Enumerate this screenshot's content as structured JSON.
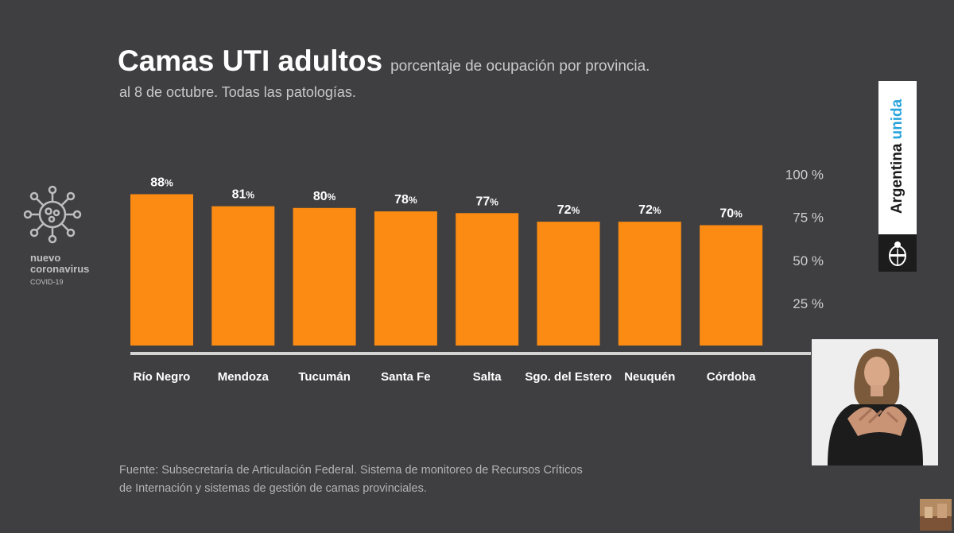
{
  "header": {
    "title": "Camas UTI adultos",
    "title_suffix": "porcentaje de ocupación por provincia.",
    "subtitle": "al 8 de octubre. Todas las patologías."
  },
  "badge": {
    "line1": "nuevo",
    "line2": "coronavirus",
    "line3": "COVID-19"
  },
  "brand": {
    "word1": "Argentina",
    "word2": "unida"
  },
  "source": {
    "line1": "Fuente: Subsecretaría de Articulación Federal. Sistema de monitoreo de Recursos Críticos",
    "line2": "de Internación  y sistemas de gestión de camas provinciales."
  },
  "colors": {
    "bar": "#fb8b12",
    "axis": "#d3d3d3",
    "text": "#ffffff",
    "accent": "#29a3db"
  },
  "chart_data": {
    "type": "bar",
    "title": "Camas UTI adultos",
    "subtitle": "porcentaje de ocupación por provincia. al 8 de octubre. Todas las patologías.",
    "categories": [
      "Río Negro",
      "Mendoza",
      "Tucumán",
      "Santa Fe",
      "Salta",
      "Sgo. del Estero",
      "Neuquén",
      "Córdoba"
    ],
    "values": [
      88,
      81,
      80,
      78,
      77,
      72,
      72,
      70
    ],
    "value_unit": "%",
    "ylim": [
      0,
      100
    ],
    "yticks": [
      25,
      50,
      75,
      100
    ],
    "ytick_labels": [
      "25 %",
      "50 %",
      "75 %",
      "100 %"
    ],
    "ytick_position": "right",
    "xlabel": "",
    "ylabel": "",
    "grid": false,
    "legend": "none"
  }
}
